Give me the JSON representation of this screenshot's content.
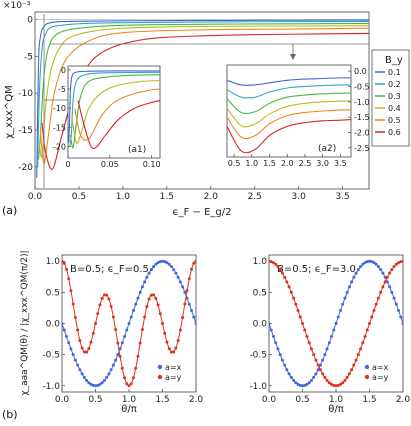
{
  "chart_data": [
    {
      "id": "a",
      "type": "line",
      "panel_label": "(a)",
      "multiplier_label": "×10⁻³",
      "ylabel": "χ_xxx^QM",
      "xlabel": "ϵ_F − E_g/2",
      "xlim": [
        0,
        3.8
      ],
      "ylim": [
        -23,
        1
      ],
      "xticks": [
        "0.0",
        "0.5",
        "1.0",
        "1.5",
        "2.0",
        "2.5",
        "3.0",
        "3.5"
      ],
      "yticks": [
        "0",
        "-5",
        "-10",
        "-15",
        "-20"
      ],
      "legend": {
        "title": "B_y",
        "position": "right",
        "entries": [
          "0.1",
          "0.2",
          "0.3",
          "0.4",
          "0.5",
          "0.6"
        ]
      },
      "series": [
        {
          "name": "0.1",
          "color": "#4466dd",
          "x": [
            0.02,
            0.04,
            0.06,
            0.1,
            0.2,
            0.5,
            1.0,
            2.0,
            3.0,
            3.8
          ],
          "y": [
            -21.5,
            -6.0,
            -2.5,
            -1.0,
            -0.4,
            -0.25,
            -0.2,
            -0.15,
            -0.12,
            -0.1
          ]
        },
        {
          "name": "0.2",
          "color": "#33aabb",
          "x": [
            0.03,
            0.05,
            0.08,
            0.12,
            0.2,
            0.5,
            1.0,
            2.0,
            3.0,
            3.8
          ],
          "y": [
            -20.0,
            -10.0,
            -4.0,
            -2.0,
            -1.0,
            -0.6,
            -0.45,
            -0.35,
            -0.3,
            -0.28
          ]
        },
        {
          "name": "0.3",
          "color": "#44bb44",
          "x": [
            0.04,
            0.06,
            0.1,
            0.15,
            0.25,
            0.5,
            1.0,
            2.0,
            3.0,
            3.8
          ],
          "y": [
            -19.0,
            -16.0,
            -8.0,
            -4.0,
            -2.0,
            -1.2,
            -0.8,
            -0.65,
            -0.6,
            -0.55
          ]
        },
        {
          "name": "0.4",
          "color": "#bbbb22",
          "x": [
            0.05,
            0.08,
            0.12,
            0.18,
            0.3,
            0.5,
            1.0,
            2.0,
            3.0,
            3.8
          ],
          "y": [
            -17.0,
            -18.5,
            -12.0,
            -7.0,
            -3.5,
            -2.0,
            -1.2,
            -0.95,
            -0.9,
            -0.85
          ]
        },
        {
          "name": "0.5",
          "color": "#ee8822",
          "x": [
            0.06,
            0.1,
            0.15,
            0.22,
            0.35,
            0.6,
            1.0,
            2.0,
            3.0,
            3.8
          ],
          "y": [
            -15.0,
            -19.5,
            -16.0,
            -10.0,
            -5.5,
            -3.0,
            -1.8,
            -1.4,
            -1.3,
            -1.2
          ]
        },
        {
          "name": "0.6",
          "color": "#dd2222",
          "x": [
            0.08,
            0.12,
            0.2,
            0.3,
            0.45,
            0.7,
            1.2,
            2.0,
            3.0,
            3.8
          ],
          "y": [
            -14.0,
            -18.0,
            -20.3,
            -16.0,
            -10.0,
            -5.0,
            -2.8,
            -2.2,
            -2.0,
            -1.9
          ]
        }
      ]
    },
    {
      "id": "a1",
      "type": "line",
      "panel_label": "(a1)",
      "xlim": [
        0,
        0.11
      ],
      "ylim": [
        -23,
        1
      ],
      "xticks": [
        "0",
        "0.05",
        "0.10"
      ],
      "yticks": [
        "0",
        "-5",
        "-10",
        "-15",
        "-20"
      ],
      "series": [
        {
          "name": "0.1",
          "color": "#4466dd",
          "x": [
            0.001,
            0.002,
            0.003,
            0.005,
            0.01,
            0.02,
            0.05,
            0.11
          ],
          "y": [
            -19.0,
            -12.0,
            -5.0,
            -1.5,
            -0.6,
            -0.4,
            -0.3,
            -0.3
          ]
        },
        {
          "name": "0.2",
          "color": "#33aabb",
          "x": [
            0.002,
            0.004,
            0.006,
            0.01,
            0.02,
            0.04,
            0.08,
            0.11
          ],
          "y": [
            -20.0,
            -17.0,
            -8.0,
            -3.0,
            -1.3,
            -0.8,
            -0.7,
            -0.65
          ]
        },
        {
          "name": "0.3",
          "color": "#44bb44",
          "x": [
            0.003,
            0.006,
            0.01,
            0.015,
            0.025,
            0.05,
            0.08,
            0.11
          ],
          "y": [
            -17.0,
            -20.3,
            -14.0,
            -7.0,
            -3.0,
            -1.8,
            -1.4,
            -1.3
          ]
        },
        {
          "name": "0.4",
          "color": "#bbbb22",
          "x": [
            0.005,
            0.01,
            0.015,
            0.025,
            0.04,
            0.06,
            0.09,
            0.11
          ],
          "y": [
            -13.0,
            -19.0,
            -17.0,
            -10.0,
            -6.0,
            -4.0,
            -3.0,
            -2.8
          ]
        },
        {
          "name": "0.5",
          "color": "#ee8822",
          "x": [
            0.008,
            0.015,
            0.025,
            0.04,
            0.055,
            0.075,
            0.1,
            0.11
          ],
          "y": [
            -10.0,
            -17.0,
            -18.0,
            -12.0,
            -8.5,
            -6.5,
            -5.2,
            -5.0
          ]
        },
        {
          "name": "0.6",
          "color": "#dd2222",
          "x": [
            0.012,
            0.02,
            0.03,
            0.045,
            0.06,
            0.08,
            0.1,
            0.11
          ],
          "y": [
            -8.0,
            -15.0,
            -20.5,
            -17.0,
            -13.0,
            -10.0,
            -8.5,
            -8.0
          ]
        }
      ]
    },
    {
      "id": "a2",
      "type": "line",
      "panel_label": "(a2)",
      "xlim": [
        0.3,
        3.8
      ],
      "ylim": [
        -2.8,
        0.2
      ],
      "xticks": [
        "0.5",
        "1.0",
        "1.5",
        "2.0",
        "2.5",
        "3.0",
        "3.5"
      ],
      "yticks": [
        "0.0",
        "-0.5",
        "-1.0",
        "-1.5",
        "-2.0",
        "-2.5"
      ],
      "series": [
        {
          "name": "0.1",
          "color": "#4466dd",
          "x": [
            0.3,
            0.7,
            1.1,
            1.5,
            2.0,
            2.5,
            3.0,
            3.5,
            3.8
          ],
          "y": [
            -0.3,
            -0.45,
            -0.45,
            -0.38,
            -0.3,
            -0.26,
            -0.24,
            -0.22,
            -0.22
          ]
        },
        {
          "name": "0.2",
          "color": "#33aabb",
          "x": [
            0.3,
            0.7,
            1.1,
            1.5,
            2.0,
            2.5,
            3.0,
            3.5,
            3.8
          ],
          "y": [
            -0.6,
            -0.85,
            -0.85,
            -0.68,
            -0.55,
            -0.5,
            -0.47,
            -0.45,
            -0.45
          ]
        },
        {
          "name": "0.3",
          "color": "#44bb44",
          "x": [
            0.3,
            0.7,
            1.1,
            1.5,
            2.0,
            2.5,
            3.0,
            3.5,
            3.8
          ],
          "y": [
            -0.9,
            -1.35,
            -1.32,
            -1.05,
            -0.85,
            -0.78,
            -0.74,
            -0.72,
            -0.72
          ]
        },
        {
          "name": "0.4",
          "color": "#bbbb22",
          "x": [
            0.3,
            0.7,
            1.1,
            1.5,
            2.0,
            2.5,
            3.0,
            3.5,
            3.8
          ],
          "y": [
            -1.2,
            -1.78,
            -1.72,
            -1.4,
            -1.15,
            -1.05,
            -1.0,
            -0.98,
            -0.97
          ]
        },
        {
          "name": "0.5",
          "color": "#ee8822",
          "x": [
            0.3,
            0.7,
            1.1,
            1.5,
            2.0,
            2.5,
            3.0,
            3.5,
            3.8
          ],
          "y": [
            -1.5,
            -2.15,
            -2.1,
            -1.72,
            -1.45,
            -1.35,
            -1.3,
            -1.27,
            -1.26
          ]
        },
        {
          "name": "0.6",
          "color": "#dd2222",
          "x": [
            0.3,
            0.7,
            1.1,
            1.5,
            2.0,
            2.5,
            3.0,
            3.5,
            3.8
          ],
          "y": [
            -1.8,
            -2.6,
            -2.55,
            -2.1,
            -1.8,
            -1.68,
            -1.62,
            -1.6,
            -1.58
          ]
        }
      ]
    },
    {
      "id": "b-left",
      "type": "line",
      "panel_label": "(b)",
      "annotation": "B=0.5; ϵ_F=0.5",
      "ylabel": "χ_aaa^QM(θ) / |χ_xxx^QM(π/2)|",
      "xlabel": "θ/π",
      "xlim": [
        0,
        2
      ],
      "ylim": [
        -1.1,
        1.1
      ],
      "xticks": [
        "0.0",
        "0.5",
        "1.0",
        "1.5",
        "2.0"
      ],
      "yticks": [
        "1.0",
        "0.5",
        "0.0",
        "-0.5",
        "-1.0"
      ],
      "legend": {
        "position": "bottom-right",
        "entries": [
          "a=x",
          "a=y"
        ]
      },
      "series": [
        {
          "name": "a=x",
          "color": "#4466dd",
          "function": "-sin(pi*theta)"
        },
        {
          "name": "a=y",
          "color": "#dd3322",
          "function": "cos(pi*theta)*(cos(pi*theta)^2 - 1.55*sin(pi*theta)^2)"
        }
      ]
    },
    {
      "id": "b-right",
      "type": "line",
      "annotation": "B=0.5; ϵ_F=3.0",
      "xlabel": "θ/π",
      "xlim": [
        0,
        2
      ],
      "ylim": [
        -1.1,
        1.1
      ],
      "xticks": [
        "0.0",
        "0.5",
        "1.0",
        "1.5",
        "2.0"
      ],
      "yticks": [
        "1.0",
        "0.5",
        "0.0",
        "-0.5",
        "-1.0"
      ],
      "legend": {
        "position": "bottom-right",
        "entries": [
          "a=x",
          "a=y"
        ]
      },
      "series": [
        {
          "name": "a=x",
          "color": "#4466dd",
          "function": "-sin(pi*theta)"
        },
        {
          "name": "a=y",
          "color": "#dd3322",
          "function": "cos(pi*theta)"
        }
      ]
    }
  ]
}
